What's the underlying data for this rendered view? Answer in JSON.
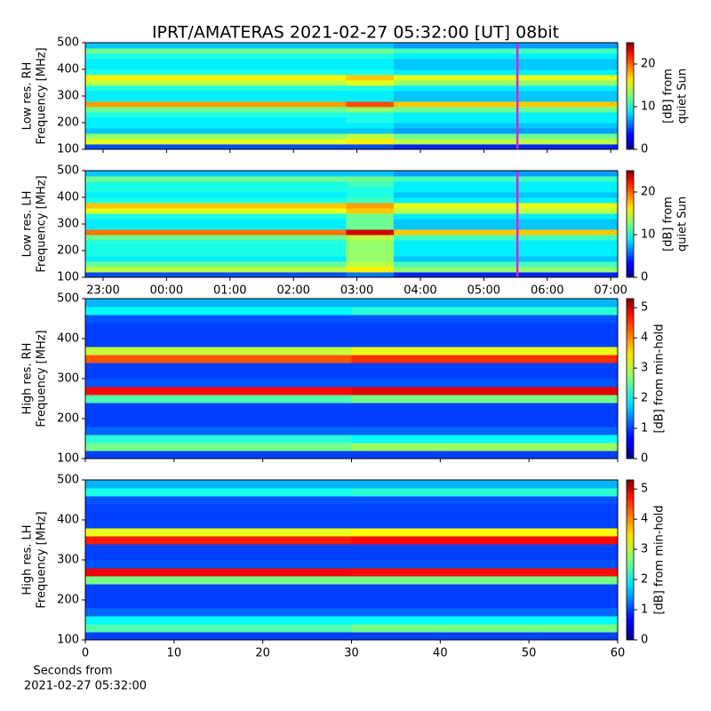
{
  "title": "IPRT/AMATERAS 2021-02-27 05:32:00 [UT]   08bit",
  "xlabel": [
    "Seconds from",
    "2021-02-27 05:32:00"
  ],
  "chart_data": [
    {
      "type": "heatmap",
      "ylabel": [
        "Low res. RH",
        "Frequency [MHz]"
      ],
      "colormap": "jet",
      "xlim": [
        22.72,
        31.11
      ],
      "xticks": [
        23,
        24,
        25,
        26,
        27,
        28,
        29,
        30,
        31
      ],
      "show_xtick_labels": false,
      "ylim": [
        100,
        500
      ],
      "yticks": [
        100,
        200,
        300,
        400,
        500
      ],
      "xbins": [
        22.72,
        26.83,
        27.58,
        31.11
      ],
      "ybins": [
        100,
        120,
        140,
        160,
        180,
        200,
        220,
        240,
        260,
        280,
        300,
        320,
        340,
        360,
        380,
        400,
        420,
        440,
        460,
        480,
        500
      ],
      "z": [
        [
          5,
          5,
          4
        ],
        [
          15,
          16,
          14
        ],
        [
          13,
          14,
          12
        ],
        [
          8,
          8,
          7
        ],
        [
          9,
          9,
          8
        ],
        [
          9,
          10,
          9
        ],
        [
          10,
          10,
          9
        ],
        [
          12,
          13,
          12
        ],
        [
          18,
          20,
          17
        ],
        [
          9,
          9,
          8
        ],
        [
          9,
          9,
          8
        ],
        [
          10,
          10,
          9
        ],
        [
          14,
          15,
          13
        ],
        [
          16,
          17,
          15
        ],
        [
          10,
          10,
          9
        ],
        [
          9,
          9,
          8
        ],
        [
          9,
          9,
          8
        ],
        [
          10,
          10,
          9
        ],
        [
          12,
          12,
          11
        ],
        [
          8,
          8,
          7
        ]
      ],
      "zlim": [
        0,
        25
      ],
      "cbar_ticks": [
        0,
        10,
        20
      ],
      "cbar_label": [
        "[dB] from",
        "quiet Sun"
      ],
      "vline": 29.53,
      "vline_color": "#dd22dd"
    },
    {
      "type": "heatmap",
      "ylabel": [
        "Low res. LH",
        "Frequency [MHz]"
      ],
      "colormap": "jet",
      "xlim": [
        22.72,
        31.11
      ],
      "xticks": [
        {
          "value": 23,
          "label": "23:00"
        },
        {
          "value": 24,
          "label": "00:00"
        },
        {
          "value": 25,
          "label": "01:00"
        },
        {
          "value": 26,
          "label": "02:00"
        },
        {
          "value": 27,
          "label": "03:00"
        },
        {
          "value": 28,
          "label": "04:00"
        },
        {
          "value": 29,
          "label": "05:00"
        },
        {
          "value": 30,
          "label": "06:00"
        },
        {
          "value": 31,
          "label": "07:00"
        }
      ],
      "show_xtick_labels": true,
      "ylim": [
        100,
        500
      ],
      "yticks": [
        100,
        200,
        300,
        400,
        500
      ],
      "xbins": [
        22.72,
        26.83,
        27.58,
        31.11
      ],
      "ybins": [
        100,
        120,
        140,
        160,
        180,
        200,
        220,
        240,
        260,
        280,
        300,
        320,
        340,
        360,
        380,
        400,
        420,
        440,
        460,
        480,
        500
      ],
      "z": [
        [
          5,
          6,
          4
        ],
        [
          14,
          16,
          13
        ],
        [
          12,
          14,
          11
        ],
        [
          9,
          13,
          8
        ],
        [
          10,
          13,
          9
        ],
        [
          10,
          13,
          9
        ],
        [
          10,
          13,
          9
        ],
        [
          12,
          14,
          11
        ],
        [
          19,
          23,
          17
        ],
        [
          9,
          12,
          8
        ],
        [
          9,
          12,
          8
        ],
        [
          10,
          12,
          9
        ],
        [
          15,
          17,
          14
        ],
        [
          17,
          18,
          15
        ],
        [
          10,
          11,
          9
        ],
        [
          9,
          10,
          8
        ],
        [
          10,
          10,
          9
        ],
        [
          10,
          11,
          9
        ],
        [
          12,
          12,
          11
        ],
        [
          8,
          8,
          7
        ]
      ],
      "zlim": [
        0,
        25
      ],
      "cbar_ticks": [
        0,
        10,
        20
      ],
      "cbar_label": [
        "[dB] from",
        "quiet Sun"
      ],
      "vline": 29.53,
      "vline_color": "#dd22dd"
    },
    {
      "type": "heatmap",
      "ylabel": [
        "High res. RH",
        "Frequency [MHz]"
      ],
      "colormap": "jet",
      "xlim": [
        0,
        60
      ],
      "xticks": [
        0,
        10,
        20,
        30,
        40,
        50,
        60
      ],
      "show_xtick_labels": false,
      "ylim": [
        100,
        500
      ],
      "yticks": [
        100,
        200,
        300,
        400,
        500
      ],
      "xbins": [
        0,
        30,
        60
      ],
      "ybins": [
        100,
        120,
        140,
        160,
        180,
        200,
        220,
        240,
        260,
        280,
        300,
        320,
        340,
        360,
        380,
        400,
        420,
        440,
        460,
        480,
        500
      ],
      "z": [
        [
          1,
          1
        ],
        [
          2.6,
          2.8
        ],
        [
          2.2,
          2
        ],
        [
          1.2,
          1.2
        ],
        [
          1,
          1
        ],
        [
          1,
          1
        ],
        [
          1,
          1
        ],
        [
          2.4,
          2.6
        ],
        [
          4.6,
          4.8
        ],
        [
          1.1,
          1.1
        ],
        [
          1,
          1
        ],
        [
          1,
          1
        ],
        [
          4.2,
          4.4
        ],
        [
          3,
          3.2
        ],
        [
          1,
          1
        ],
        [
          1,
          1
        ],
        [
          1,
          1
        ],
        [
          1.1,
          1.1
        ],
        [
          2,
          2.2
        ],
        [
          1.6,
          1.6
        ]
      ],
      "zlim": [
        0,
        5.3
      ],
      "cbar_ticks": [
        0,
        1,
        2,
        3,
        4,
        5
      ],
      "cbar_label": [
        "[dB] from min-hold"
      ]
    },
    {
      "type": "heatmap",
      "ylabel": [
        "High res. LH",
        "Frequency [MHz]"
      ],
      "colormap": "jet",
      "xlim": [
        0,
        60
      ],
      "xticks": [
        0,
        10,
        20,
        30,
        40,
        50,
        60
      ],
      "show_xtick_labels": true,
      "ylim": [
        100,
        500
      ],
      "yticks": [
        100,
        200,
        300,
        400,
        500
      ],
      "xbins": [
        0,
        30,
        60
      ],
      "ybins": [
        100,
        120,
        140,
        160,
        180,
        200,
        220,
        240,
        260,
        280,
        300,
        320,
        340,
        360,
        380,
        400,
        420,
        440,
        460,
        480,
        500
      ],
      "z": [
        [
          1,
          1
        ],
        [
          2.4,
          2.6
        ],
        [
          2,
          2
        ],
        [
          1.2,
          1.2
        ],
        [
          1,
          1
        ],
        [
          1,
          1
        ],
        [
          1,
          1
        ],
        [
          2.6,
          2.6
        ],
        [
          4.7,
          4.6
        ],
        [
          1.1,
          1.1
        ],
        [
          1,
          1
        ],
        [
          1,
          1
        ],
        [
          4.5,
          4.6
        ],
        [
          3.2,
          3.3
        ],
        [
          1,
          1
        ],
        [
          1,
          1
        ],
        [
          1,
          1
        ],
        [
          1.1,
          1.1
        ],
        [
          2.1,
          2.2
        ],
        [
          1.6,
          1.6
        ]
      ],
      "zlim": [
        0,
        5.3
      ],
      "cbar_ticks": [
        0,
        1,
        2,
        3,
        4,
        5
      ],
      "cbar_label": [
        "[dB] from min-hold"
      ]
    }
  ]
}
